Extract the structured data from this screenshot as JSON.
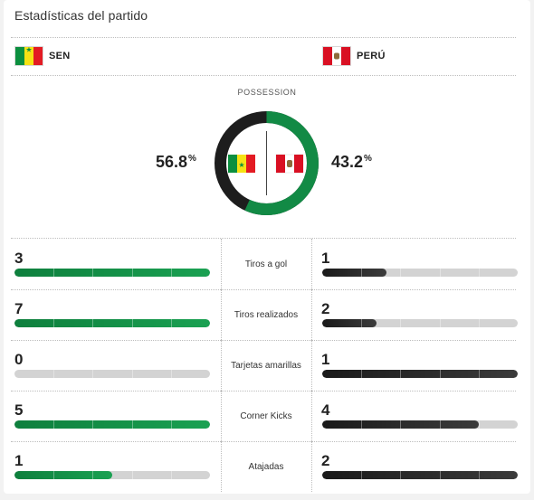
{
  "title": "Estadísticas del partido",
  "teams": {
    "home": {
      "code": "SEN",
      "flag": "senegal-flag",
      "color": "#0b8f3f"
    },
    "away": {
      "code": "PERÚ",
      "flag": "peru-flag",
      "color": "#222222"
    }
  },
  "possession": {
    "label": "POSSESSION",
    "home_value": "56.8",
    "away_value": "43.2",
    "unit": "%",
    "home_fraction": 0.568
  },
  "stats": [
    {
      "label": "Tiros a gol",
      "home": "3",
      "away": "1",
      "home_fill": 1.0,
      "away_fill": 0.33
    },
    {
      "label": "Tiros realizados",
      "home": "7",
      "away": "2",
      "home_fill": 1.0,
      "away_fill": 0.28
    },
    {
      "label": "Tarjetas amarillas",
      "home": "0",
      "away": "1",
      "home_fill": 0.0,
      "away_fill": 1.0
    },
    {
      "label": "Corner Kicks",
      "home": "5",
      "away": "4",
      "home_fill": 1.0,
      "away_fill": 0.8
    },
    {
      "label": "Atajadas",
      "home": "1",
      "away": "2",
      "home_fill": 0.5,
      "away_fill": 1.0
    }
  ]
}
